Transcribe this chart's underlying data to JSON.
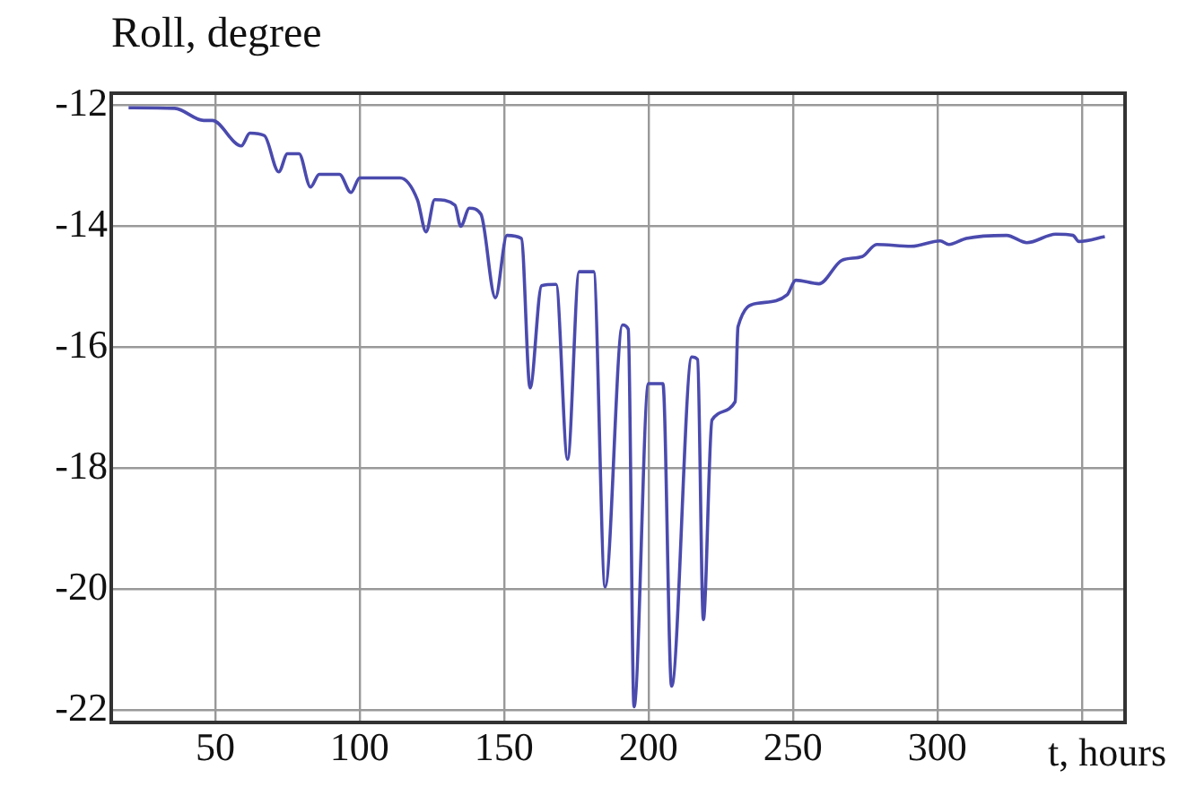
{
  "chart_data": {
    "type": "line",
    "ylabel": "Roll, degree",
    "xlabel": "t, hours",
    "xlim": [
      14,
      365
    ],
    "xticks": [
      50,
      100,
      150,
      200,
      250,
      300,
      {
        "value": 350,
        "label": null
      }
    ],
    "ylim": [
      -22.2,
      -11.8
    ],
    "yticks": [
      -12,
      -14,
      -16,
      -18,
      -20,
      -22
    ],
    "grid": true,
    "legend": false,
    "marker": "none",
    "line_style": "solid",
    "series": [
      {
        "color": "#4a4aae",
        "x": [
          20,
          36,
          46,
          49,
          59,
          62,
          67,
          72,
          75,
          79,
          83,
          86,
          93,
          97,
          100,
          114,
          120,
          123,
          126,
          133,
          135,
          138,
          142,
          147,
          151,
          156,
          159,
          163,
          168,
          172,
          176,
          181,
          185,
          191,
          193,
          195,
          200,
          205,
          208,
          215,
          217,
          219,
          222,
          230,
          231,
          238,
          248,
          251,
          259,
          267,
          274,
          279,
          291,
          301,
          304,
          310,
          324,
          331,
          341,
          347,
          349,
          358
        ],
        "values": [
          -12.04,
          -12.05,
          -12.25,
          -12.25,
          -12.67,
          -12.46,
          -12.5,
          -13.1,
          -12.8,
          -12.8,
          -13.35,
          -13.14,
          -13.14,
          -13.44,
          -13.2,
          -13.2,
          -13.56,
          -14.09,
          -13.56,
          -13.65,
          -14.0,
          -13.7,
          -13.8,
          -15.18,
          -14.15,
          -14.2,
          -16.67,
          -14.98,
          -14.96,
          -17.85,
          -14.75,
          -14.75,
          -19.96,
          -15.63,
          -15.7,
          -21.94,
          -16.6,
          -16.6,
          -21.6,
          -16.16,
          -16.2,
          -20.5,
          -17.2,
          -16.9,
          -15.66,
          -15.27,
          -15.13,
          -14.89,
          -14.95,
          -14.56,
          -14.5,
          -14.3,
          -14.33,
          -14.24,
          -14.3,
          -14.2,
          -14.15,
          -14.27,
          -14.13,
          -14.15,
          -14.25,
          -14.17
        ]
      }
    ]
  }
}
